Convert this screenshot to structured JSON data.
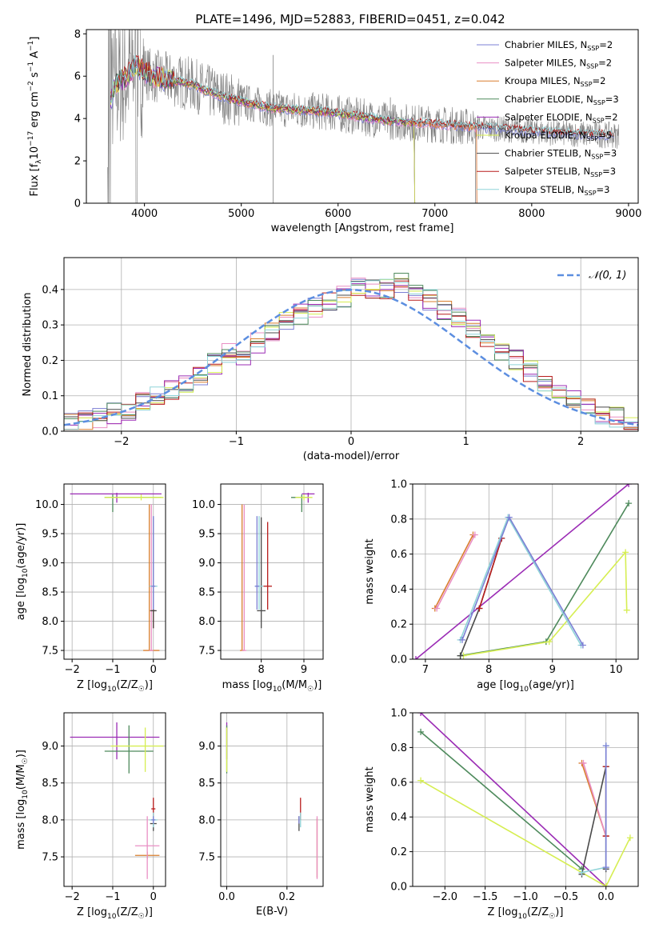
{
  "figure_title": "PLATE=1496, MJD=52883, FIBERID=0451, z=0.042",
  "model_colors": {
    "Chabrier MILES": "#7b7fd4",
    "Salpeter MILES": "#e98fc4",
    "Kroupa MILES": "#d97f2f",
    "Chabrier ELODIE": "#4e8a5c",
    "Salpeter ELODIE": "#9b2cb5",
    "Kroupa ELODIE": "#d6ee52",
    "Chabrier STELIB": "#4a4a4a",
    "Salpeter STELIB": "#b81c1c",
    "Kroupa STELIB": "#8fd3d8",
    "data": "#808080",
    "gaussian": "#5c8ee0"
  },
  "chart_data": [
    {
      "id": "spectrum",
      "type": "line",
      "xlabel": "wavelength [Angstrom, rest frame]",
      "ylabel_parts": [
        "Flux [f",
        "λ",
        "10",
        "−17",
        " erg cm",
        "−2",
        " s",
        "−1",
        " A",
        "−1",
        "]"
      ],
      "xlim": [
        3400,
        9100
      ],
      "ylim": [
        0,
        8.2
      ],
      "xticks": [
        4000,
        5000,
        6000,
        7000,
        8000,
        9000
      ],
      "yticks": [
        0,
        2,
        4,
        6,
        8
      ],
      "grid": false,
      "legend_placement": "top-right",
      "legend": [
        {
          "base": "Chabrier MILES, N",
          "sub": "SSP",
          "tail": "=2"
        },
        {
          "base": "Salpeter MILES, N",
          "sub": "SSP",
          "tail": "=2"
        },
        {
          "base": "Kroupa MILES, N",
          "sub": "SSP",
          "tail": "=2"
        },
        {
          "base": "Chabrier ELODIE, N",
          "sub": "SSP",
          "tail": "=3"
        },
        {
          "base": "Salpeter ELODIE, N",
          "sub": "SSP",
          "tail": "=2"
        },
        {
          "base": "Kroupa ELODIE, N",
          "sub": "SSP",
          "tail": "=5"
        },
        {
          "base": "Chabrier STELIB, N",
          "sub": "SSP",
          "tail": "=3"
        },
        {
          "base": "Salpeter STELIB, N",
          "sub": "SSP",
          "tail": "=3"
        },
        {
          "base": "Kroupa STELIB, N",
          "sub": "SSP",
          "tail": "=3"
        }
      ],
      "continuum_x": [
        3650,
        3700,
        3800,
        3900,
        4000,
        4100,
        4300,
        4500,
        4700,
        4900,
        5100,
        5300,
        5600,
        5900,
        6200,
        6500,
        6800,
        7100,
        7400,
        7700,
        8000,
        8300,
        8600,
        8900
      ],
      "continuum_y": [
        4.9,
        5.6,
        5.9,
        6.5,
        6.2,
        6.0,
        5.8,
        5.6,
        5.2,
        4.9,
        4.7,
        4.5,
        4.4,
        4.3,
        4.1,
        3.9,
        3.8,
        3.7,
        3.6,
        3.5,
        3.4,
        3.3,
        3.25,
        3.2
      ]
    },
    {
      "id": "residuals",
      "type": "step",
      "xlabel": "(data-model)/error",
      "ylabel": "Normed distribution",
      "xlim": [
        -2.5,
        2.5
      ],
      "ylim": [
        0,
        0.49
      ],
      "xticks": [
        -2,
        -1,
        0,
        1,
        2
      ],
      "yticks": [
        0.0,
        0.1,
        0.2,
        0.3,
        0.4
      ],
      "grid": true,
      "legend_placement": "top-right",
      "legend_label": "𝒩(0, 1)",
      "bins": [
        -2.5,
        2.5,
        40
      ],
      "hist_values": [
        0.02,
        0.03,
        0.04,
        0.05,
        0.06,
        0.08,
        0.1,
        0.12,
        0.14,
        0.16,
        0.19,
        0.22,
        0.2,
        0.25,
        0.28,
        0.31,
        0.33,
        0.35,
        0.37,
        0.38,
        0.41,
        0.4,
        0.4,
        0.42,
        0.39,
        0.37,
        0.34,
        0.32,
        0.29,
        0.26,
        0.23,
        0.2,
        0.17,
        0.14,
        0.12,
        0.09,
        0.07,
        0.05,
        0.04,
        0.02
      ]
    },
    {
      "id": "age-vs-Z",
      "type": "errorbar",
      "xlabel_parts": [
        "Z [log",
        "10",
        "(Z/Z",
        "☉",
        ")]"
      ],
      "ylabel_parts": [
        "age  [log",
        "10",
        "(age/yr)]"
      ],
      "xlim": [
        -2.2,
        0.3
      ],
      "ylim": [
        7.35,
        10.35
      ],
      "xticks": [
        -2,
        -1,
        0
      ],
      "yticks": [
        7.5,
        8.0,
        8.5,
        9.0,
        9.5,
        10.0
      ],
      "grid": true,
      "points": [
        {
          "model": "Salpeter ELODIE",
          "x": -0.9,
          "xerr": [
            1.15,
            1.1
          ],
          "y": 10.18,
          "yerr": [
            0.15,
            0.02
          ]
        },
        {
          "model": "Chabrier ELODIE",
          "x": -1.0,
          "xerr": [
            0.2,
            1.2
          ],
          "y": 10.12,
          "yerr": [
            0.25,
            0.05
          ]
        },
        {
          "model": "Kroupa ELODIE",
          "x": -0.3,
          "xerr": [
            0.9,
            0.55
          ],
          "y": 10.12,
          "yerr": [
            0.05,
            0.05
          ]
        },
        {
          "model": "Kroupa MILES",
          "x": -0.1,
          "xerr": [
            0.15,
            0.25
          ],
          "y": 7.5,
          "yerr": [
            0,
            2.5
          ]
        },
        {
          "model": "Salpeter MILES",
          "x": -0.05,
          "xerr": [
            0.05,
            0.05
          ],
          "y": 7.5,
          "yerr": [
            0,
            2.5
          ]
        },
        {
          "model": "Salpeter STELIB",
          "x": 0.0,
          "xerr": [
            0.05,
            0.05
          ],
          "y": 8.18,
          "yerr": [
            0.3,
            1.6
          ]
        },
        {
          "model": "Chabrier STELIB",
          "x": 0.0,
          "xerr": [
            0.08,
            0.08
          ],
          "y": 8.18,
          "yerr": [
            0.3,
            1.6
          ]
        },
        {
          "model": "Kroupa STELIB",
          "x": 0.0,
          "xerr": [
            0.1,
            0.1
          ],
          "y": 8.6,
          "yerr": [
            0.4,
            1.2
          ]
        },
        {
          "model": "Chabrier MILES",
          "x": 0.0,
          "xerr": [
            0.05,
            0.05
          ],
          "y": 8.6,
          "yerr": [
            0.4,
            1.2
          ]
        }
      ]
    },
    {
      "id": "age-vs-mass",
      "type": "errorbar",
      "xlabel_parts": [
        "mass [log",
        "10",
        "(M/M",
        "☉",
        ")]"
      ],
      "ylabel": "",
      "xlim": [
        7.05,
        9.45
      ],
      "ylim": [
        7.35,
        10.35
      ],
      "xticks": [
        8,
        9
      ],
      "yticks": [
        7.5,
        8.0,
        8.5,
        9.0,
        9.5,
        10.0
      ],
      "grid": true,
      "points": [
        {
          "model": "Salpeter ELODIE",
          "x": 9.1,
          "xerr": [
            0.15,
            0.15
          ],
          "y": 10.18,
          "yerr": [
            0.15,
            0.02
          ]
        },
        {
          "model": "Chabrier ELODIE",
          "x": 8.95,
          "xerr": [
            0.25,
            0.15
          ],
          "y": 10.12,
          "yerr": [
            0.25,
            0.05
          ]
        },
        {
          "model": "Kroupa ELODIE",
          "x": 9.0,
          "xerr": [
            0.2,
            0.2
          ],
          "y": 10.12,
          "yerr": [
            0.05,
            0.05
          ]
        },
        {
          "model": "Kroupa MILES",
          "x": 7.55,
          "xerr": [
            0.05,
            0.05
          ],
          "y": 7.5,
          "yerr": [
            0,
            2.5
          ]
        },
        {
          "model": "Salpeter MILES",
          "x": 7.6,
          "xerr": [
            0.05,
            0.05
          ],
          "y": 7.5,
          "yerr": [
            0,
            2.5
          ]
        },
        {
          "model": "Salpeter STELIB",
          "x": 8.15,
          "xerr": [
            0.1,
            0.1
          ],
          "y": 8.6,
          "yerr": [
            0.4,
            1.1
          ]
        },
        {
          "model": "Chabrier STELIB",
          "x": 8.0,
          "xerr": [
            0.1,
            0.1
          ],
          "y": 8.18,
          "yerr": [
            0.3,
            1.6
          ]
        },
        {
          "model": "Kroupa STELIB",
          "x": 7.95,
          "xerr": [
            0.1,
            0.1
          ],
          "y": 8.6,
          "yerr": [
            0.4,
            1.2
          ]
        },
        {
          "model": "Chabrier MILES",
          "x": 7.9,
          "xerr": [
            0.05,
            0.05
          ],
          "y": 8.6,
          "yerr": [
            0.4,
            1.2
          ]
        }
      ]
    },
    {
      "id": "weight-vs-age",
      "type": "line",
      "xlabel_parts": [
        "age  [log",
        "10",
        "(age/yr)]"
      ],
      "ylabel": "mass weight",
      "xlim": [
        6.8,
        10.35
      ],
      "ylim": [
        0,
        1.0
      ],
      "xticks": [
        7,
        8,
        9,
        10
      ],
      "yticks": [
        0.0,
        0.2,
        0.4,
        0.6,
        0.8,
        1.0
      ],
      "grid": true,
      "series": [
        {
          "model": "Salpeter ELODIE",
          "x": [
            6.85,
            10.2
          ],
          "y": [
            0.0,
            1.0
          ]
        },
        {
          "model": "Chabrier ELODIE",
          "x": [
            7.55,
            8.9,
            10.2
          ],
          "y": [
            0.02,
            0.1,
            0.89
          ]
        },
        {
          "model": "Kroupa ELODIE",
          "x": [
            7.6,
            8.95,
            10.15,
            10.17
          ],
          "y": [
            0.02,
            0.1,
            0.61,
            0.28
          ]
        },
        {
          "model": "Kroupa MILES",
          "x": [
            7.15,
            7.75
          ],
          "y": [
            0.29,
            0.71
          ]
        },
        {
          "model": "Salpeter MILES",
          "x": [
            7.18,
            7.78
          ],
          "y": [
            0.29,
            0.71
          ]
        },
        {
          "model": "Chabrier STELIB",
          "x": [
            7.55,
            7.85,
            8.2
          ],
          "y": [
            0.02,
            0.29,
            0.69
          ]
        },
        {
          "model": "Salpeter STELIB",
          "x": [
            7.85,
            8.2
          ],
          "y": [
            0.29,
            0.69
          ]
        },
        {
          "model": "Kroupa STELIB",
          "x": [
            7.55,
            8.3,
            9.45
          ],
          "y": [
            0.11,
            0.81,
            0.08
          ]
        },
        {
          "model": "Chabrier MILES",
          "x": [
            7.58,
            8.32,
            9.48
          ],
          "y": [
            0.11,
            0.81,
            0.08
          ]
        }
      ]
    },
    {
      "id": "mass-vs-Z",
      "type": "errorbar",
      "xlabel_parts": [
        "Z [log",
        "10",
        "(Z/Z",
        "☉",
        ")]"
      ],
      "ylabel_parts": [
        "mass [log",
        "10",
        "(M/M",
        "☉",
        ")]"
      ],
      "xlim": [
        -2.2,
        0.3
      ],
      "ylim": [
        7.1,
        9.45
      ],
      "xticks": [
        -2,
        -1,
        0
      ],
      "yticks": [
        7.5,
        8.0,
        8.5,
        9.0
      ],
      "grid": true,
      "points": [
        {
          "model": "Salpeter ELODIE",
          "x": -0.9,
          "xerr": [
            1.15,
            1.05
          ],
          "y": 9.12,
          "yerr": [
            0.3,
            0.2
          ]
        },
        {
          "model": "Chabrier ELODIE",
          "x": -0.6,
          "xerr": [
            0.6,
            0.6
          ],
          "y": 8.93,
          "yerr": [
            0.3,
            0.35
          ]
        },
        {
          "model": "Kroupa ELODIE",
          "x": -0.2,
          "xerr": [
            0.85,
            0.45
          ],
          "y": 9.0,
          "yerr": [
            0.35,
            0.25
          ]
        },
        {
          "model": "Kroupa MILES",
          "x": -0.15,
          "xerr": [
            0.3,
            0.3
          ],
          "y": 7.52,
          "yerr": [
            0.05,
            0.05
          ]
        },
        {
          "model": "Salpeter MILES",
          "x": -0.15,
          "xerr": [
            0.3,
            0.3
          ],
          "y": 7.65,
          "yerr": [
            0.45,
            0.4
          ]
        },
        {
          "model": "Salpeter STELIB",
          "x": 0.0,
          "xerr": [
            0.05,
            0.05
          ],
          "y": 8.15,
          "yerr": [
            0.15,
            0.15
          ]
        },
        {
          "model": "Chabrier STELIB",
          "x": 0.0,
          "xerr": [
            0.08,
            0.08
          ],
          "y": 7.95,
          "yerr": [
            0.1,
            0.1
          ]
        },
        {
          "model": "Kroupa STELIB",
          "x": 0.0,
          "xerr": [
            0.1,
            0.1
          ],
          "y": 8.0,
          "yerr": [
            0.1,
            0.1
          ]
        },
        {
          "model": "Chabrier MILES",
          "x": 0.0,
          "xerr": [
            0.05,
            0.05
          ],
          "y": 8.0,
          "yerr": [
            0.05,
            0.05
          ]
        }
      ]
    },
    {
      "id": "mass-vs-EBV",
      "type": "errorbar",
      "xlabel": "E(B-V)",
      "ylabel": "",
      "xlim": [
        -0.02,
        0.32
      ],
      "ylim": [
        7.1,
        9.45
      ],
      "xticks": [
        0.0,
        0.2
      ],
      "yticks": [
        7.5,
        8.0,
        8.5,
        9.0
      ],
      "grid": true,
      "points": [
        {
          "model": "Salpeter ELODIE",
          "x": 0.0,
          "xerr": [
            0,
            0
          ],
          "y": 9.12,
          "yerr": [
            0.3,
            0.2
          ]
        },
        {
          "model": "Chabrier ELODIE",
          "x": 0.0,
          "xerr": [
            0,
            0
          ],
          "y": 8.93,
          "yerr": [
            0.3,
            0.35
          ]
        },
        {
          "model": "Kroupa ELODIE",
          "x": 0.0,
          "xerr": [
            0,
            0
          ],
          "y": 9.0,
          "yerr": [
            0.35,
            0.25
          ]
        },
        {
          "model": "Kroupa MILES",
          "x": 0.3,
          "xerr": [
            0,
            0
          ],
          "y": 7.52,
          "yerr": [
            0.3,
            0.5
          ]
        },
        {
          "model": "Salpeter MILES",
          "x": 0.3,
          "xerr": [
            0,
            0
          ],
          "y": 7.65,
          "yerr": [
            0.45,
            0.4
          ]
        },
        {
          "model": "Salpeter STELIB",
          "x": 0.245,
          "xerr": [
            0,
            0
          ],
          "y": 8.15,
          "yerr": [
            0.15,
            0.15
          ]
        },
        {
          "model": "Chabrier STELIB",
          "x": 0.24,
          "xerr": [
            0,
            0
          ],
          "y": 7.95,
          "yerr": [
            0.1,
            0.1
          ]
        },
        {
          "model": "Kroupa STELIB",
          "x": 0.245,
          "xerr": [
            0,
            0
          ],
          "y": 8.0,
          "yerr": [
            0.1,
            0.1
          ]
        },
        {
          "model": "Chabrier MILES",
          "x": 0.24,
          "xerr": [
            0,
            0
          ],
          "y": 8.0,
          "yerr": [
            0.05,
            0.05
          ]
        }
      ]
    },
    {
      "id": "weight-vs-Z",
      "type": "line",
      "xlabel_parts": [
        "Z [log",
        "10",
        "(Z/Z",
        "☉",
        ")]"
      ],
      "ylabel": "mass weight",
      "xlim": [
        -2.4,
        0.4
      ],
      "ylim": [
        0,
        1.0
      ],
      "xticks": [
        -2.0,
        -1.5,
        -1.0,
        -0.5,
        0.0
      ],
      "yticks": [
        0.0,
        0.2,
        0.4,
        0.6,
        0.8,
        1.0
      ],
      "grid": true,
      "series": [
        {
          "model": "Salpeter ELODIE",
          "x": [
            -2.3,
            0.0
          ],
          "y": [
            1.0,
            0.0
          ]
        },
        {
          "model": "Chabrier ELODIE",
          "x": [
            -2.3,
            -0.3
          ],
          "y": [
            0.89,
            0.1
          ]
        },
        {
          "model": "Kroupa ELODIE",
          "x": [
            -2.3,
            0.0,
            0.3
          ],
          "y": [
            0.61,
            0.0,
            0.28
          ]
        },
        {
          "model": "Kroupa MILES",
          "x": [
            -0.3,
            0.0
          ],
          "y": [
            0.71,
            0.29
          ]
        },
        {
          "model": "Salpeter MILES",
          "x": [
            -0.28,
            0.0
          ],
          "y": [
            0.71,
            0.29
          ]
        },
        {
          "model": "Chabrier STELIB",
          "x": [
            -0.3,
            0.0,
            0.0
          ],
          "y": [
            0.07,
            0.69,
            0.1
          ]
        },
        {
          "model": "Salpeter STELIB",
          "x": [
            0.0,
            0.0
          ],
          "y": [
            0.69,
            0.29
          ]
        },
        {
          "model": "Kroupa STELIB",
          "x": [
            0.0,
            0.0,
            -0.3
          ],
          "y": [
            0.81,
            0.11,
            0.08
          ]
        },
        {
          "model": "Chabrier MILES",
          "x": [
            0.0,
            0.0
          ],
          "y": [
            0.81,
            0.11
          ]
        }
      ]
    }
  ]
}
